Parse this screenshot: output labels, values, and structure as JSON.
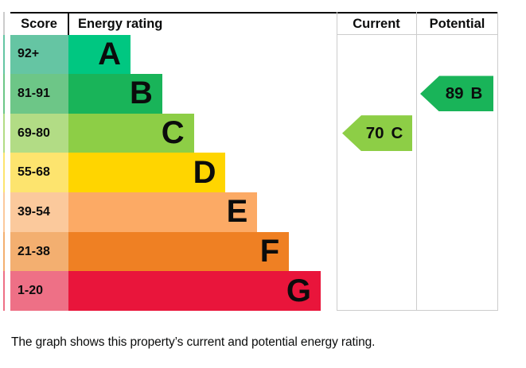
{
  "header": {
    "columns": [
      {
        "label": "Score"
      },
      {
        "label": "Energy rating"
      },
      {
        "label": "Current"
      },
      {
        "label": "Potential"
      }
    ]
  },
  "chart_data": {
    "type": "bar",
    "title": "Energy rating",
    "bands": [
      {
        "letter": "A",
        "range": "92+",
        "color": "#00c781",
        "tint": "#65c5a3"
      },
      {
        "letter": "B",
        "range": "81-91",
        "color": "#19b459",
        "tint": "#6dc687"
      },
      {
        "letter": "C",
        "range": "69-80",
        "color": "#8dce46",
        "tint": "#b2dc85"
      },
      {
        "letter": "D",
        "range": "55-68",
        "color": "#ffd500",
        "tint": "#fde46e"
      },
      {
        "letter": "E",
        "range": "39-54",
        "color": "#fcaa65",
        "tint": "#fbc99c"
      },
      {
        "letter": "F",
        "range": "21-38",
        "color": "#ef8023",
        "tint": "#f3af70"
      },
      {
        "letter": "G",
        "range": "1-20",
        "color": "#e9153b",
        "tint": "#ee7086"
      }
    ],
    "current": {
      "value": "70",
      "band": "C",
      "band_index": 2,
      "color": "#8dce46"
    },
    "potential": {
      "value": "89",
      "band": "B",
      "band_index": 1,
      "color": "#19b459"
    },
    "layout": {
      "legend": "none",
      "grid": "column-rules-only"
    }
  },
  "colors": {
    "border_dark": "#0b0c0c",
    "border_light": "#cccccc",
    "text": "#0b0c0c",
    "background": "#ffffff"
  },
  "caption": "The graph shows this property’s current and potential energy rating."
}
